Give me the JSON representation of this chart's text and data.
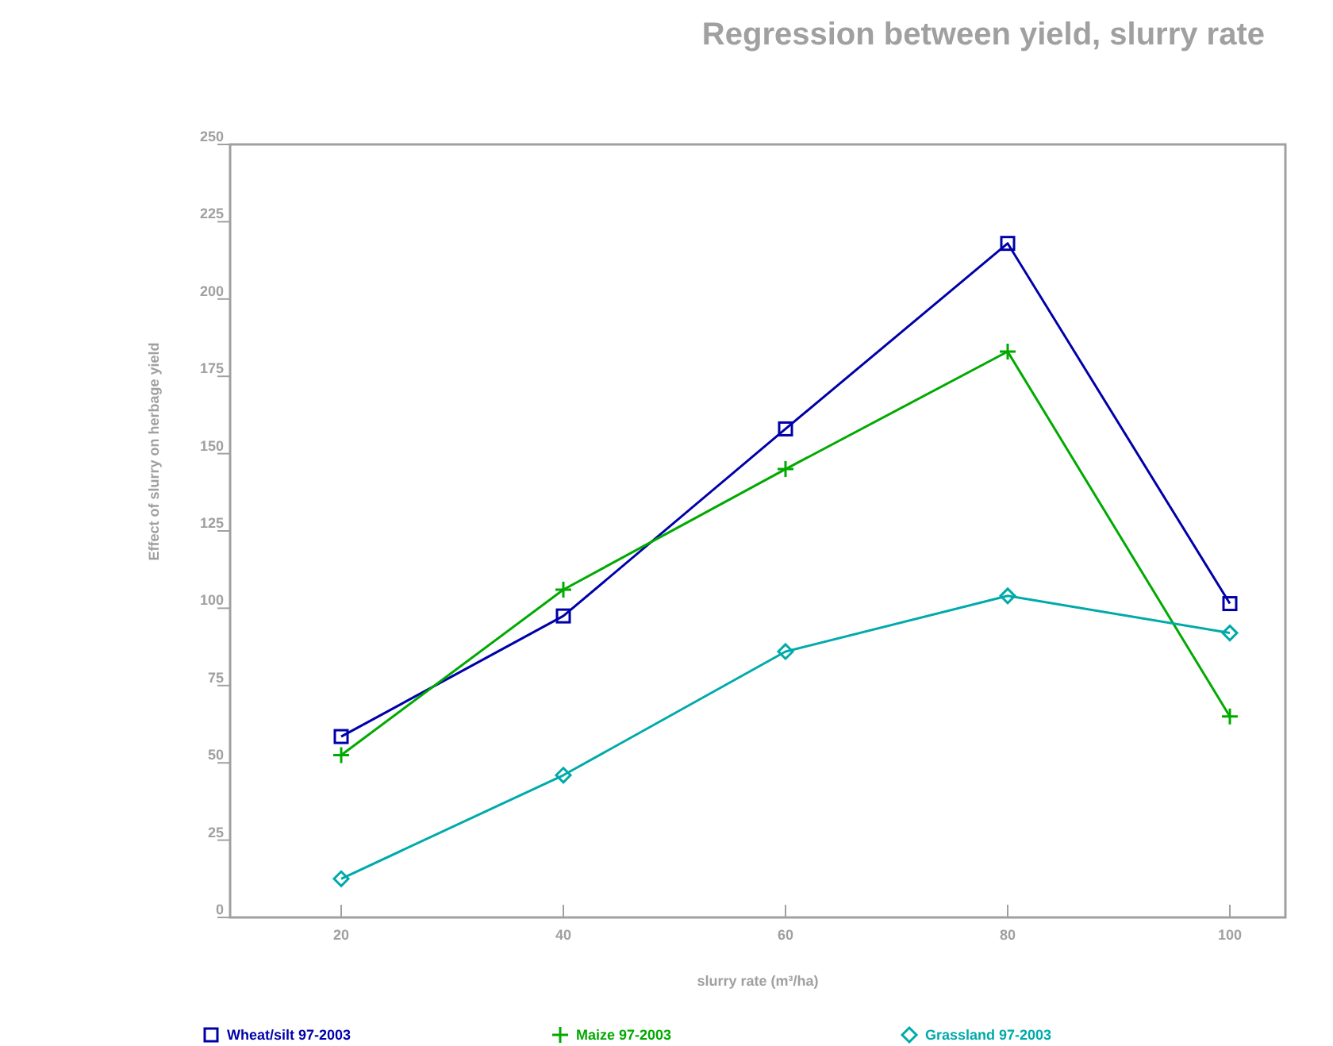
{
  "chart_data": {
    "type": "line",
    "title": "Regression between yield, slurry rate",
    "xlabel": "slurry rate (m³/ha)",
    "ylabel": "Effect of slurry on herbage yield",
    "x": [
      20,
      40,
      60,
      80,
      100
    ],
    "xlim": [
      10,
      105
    ],
    "xticks": [
      20,
      40,
      60,
      80,
      100
    ],
    "ylim": [
      0,
      250
    ],
    "yticks": [
      0,
      25,
      50,
      75,
      100,
      125,
      150,
      175,
      200,
      225,
      250
    ],
    "grid": false,
    "legend": "bottom",
    "series": [
      {
        "name": "Wheat/silt 97-2003",
        "color": "#0000aa",
        "marker": "square",
        "values": [
          58.5,
          97.5,
          158,
          218,
          101.5
        ]
      },
      {
        "name": "Maize 97-2003",
        "color": "#00aa00",
        "marker": "cross",
        "values": [
          52.5,
          106,
          145,
          183,
          65
        ]
      },
      {
        "name": "Grassland 97-2003",
        "color": "#00aaaa",
        "marker": "diamond",
        "values": [
          12.5,
          46,
          86,
          104,
          92
        ]
      }
    ]
  }
}
